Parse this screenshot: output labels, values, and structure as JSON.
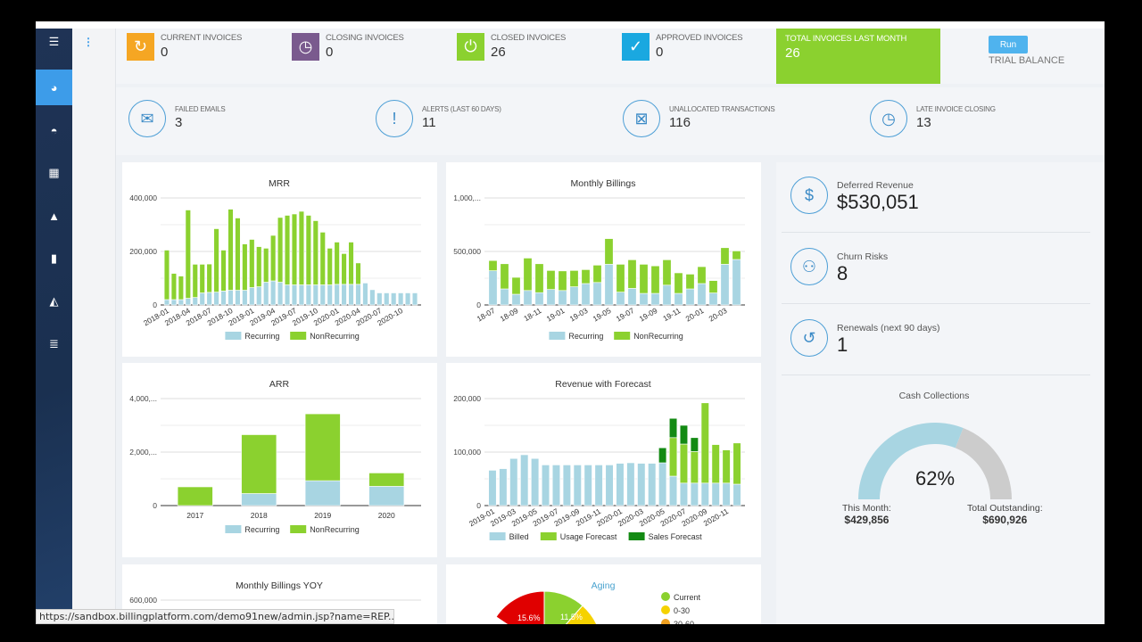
{
  "sidebar": {
    "items": [
      {
        "icon": "menu-icon",
        "glyph": "☰"
      },
      {
        "icon": "pie-chart-icon",
        "glyph": "◕",
        "active": true
      },
      {
        "icon": "dashboard-gauge-icon",
        "glyph": "◓"
      },
      {
        "icon": "grid-icon",
        "glyph": "▦"
      },
      {
        "icon": "user-icon",
        "glyph": "▲"
      },
      {
        "icon": "document-icon",
        "glyph": "▮"
      },
      {
        "icon": "area-chart-icon",
        "glyph": "◭"
      },
      {
        "icon": "list-icon",
        "glyph": "≣"
      }
    ]
  },
  "invoice_stats": [
    {
      "label": "CURRENT INVOICES",
      "value": "0",
      "color": "#f5a623",
      "icon": "refresh-icon",
      "glyph": "↻"
    },
    {
      "label": "CLOSING INVOICES",
      "value": "0",
      "color": "#7a5a8e",
      "icon": "clock-icon",
      "glyph": "◷"
    },
    {
      "label": "CLOSED INVOICES",
      "value": "26",
      "color": "#8bd12f",
      "icon": "power-icon",
      "glyph": "⏻"
    },
    {
      "label": "APPROVED INVOICES",
      "value": "0",
      "color": "#1aa8e0",
      "icon": "check-icon",
      "glyph": "✓"
    }
  ],
  "total_last_month": {
    "label": "TOTAL INVOICES LAST MONTH",
    "value": "26"
  },
  "trial_balance": {
    "button": "Run",
    "label": "TRIAL BALANCE"
  },
  "alerts": [
    {
      "label": "FAILED EMAILS",
      "value": "3",
      "icon": "email-alert-icon",
      "glyph": "✉"
    },
    {
      "label": "ALERTS (LAST 60 DAYS)",
      "value": "11",
      "icon": "exclamation-icon",
      "glyph": "!"
    },
    {
      "label": "UNALLOCATED TRANSACTIONS",
      "value": "116",
      "icon": "transaction-x-icon",
      "glyph": "⊠"
    },
    {
      "label": "LATE INVOICE CLOSING",
      "value": "13",
      "icon": "clock-icon",
      "glyph": "◷"
    }
  ],
  "kpis": [
    {
      "label": "Deferred Revenue",
      "value": "$530,051",
      "icon": "money-bill-icon",
      "glyph": "$"
    },
    {
      "label": "Churn Risks",
      "value": "8",
      "icon": "users-icon",
      "glyph": "⚇"
    },
    {
      "label": "Renewals (next 90 days)",
      "value": "1",
      "icon": "renew-icon",
      "glyph": "↺"
    }
  ],
  "cash_collections": {
    "title": "Cash Collections",
    "percent": 62,
    "percent_label": "62%",
    "this_month_label": "This Month:",
    "this_month": "$429,856",
    "outstanding_label": "Total Outstanding:",
    "outstanding": "$690,926",
    "colors": {
      "collected": "#a8d5e2",
      "remaining": "#cccccc"
    }
  },
  "status_url": "https://sandbox.billingplatform.com/demo91new/admin.jsp?name=REP...",
  "chart_data": [
    {
      "id": "mrr",
      "type": "bar",
      "stacked": true,
      "title": "MRR",
      "ylim": [
        0,
        400000
      ],
      "yticks": [
        "400,000",
        "200,000",
        "0"
      ],
      "ytick_values": [
        400000,
        200000,
        0
      ],
      "categories": [
        "2018-01",
        "2018-02",
        "2018-03",
        "2018-04",
        "2018-05",
        "2018-06",
        "2018-07",
        "2018-08",
        "2018-09",
        "2018-10",
        "2018-11",
        "2018-12",
        "2019-01",
        "2019-02",
        "2019-03",
        "2019-04",
        "2019-05",
        "2019-06",
        "2019-07",
        "2019-08",
        "2019-09",
        "2019-10",
        "2019-11",
        "2019-12",
        "2020-01",
        "2020-02",
        "2020-03",
        "2020-04",
        "2020-05",
        "2020-06",
        "2020-07",
        "2020-08",
        "2020-09",
        "2020-10",
        "2020-11",
        "2020-12"
      ],
      "xtick_labels": [
        "2018-01",
        "2018-04",
        "2018-07",
        "2018-10",
        "2019-01",
        "2019-04",
        "2019-07",
        "2019-10",
        "2020-01",
        "2020-04",
        "2020-07",
        "2020-10"
      ],
      "xtick_every": 3,
      "series": [
        {
          "name": "Recurring",
          "color": "#a8d5e2",
          "values": [
            20000,
            20000,
            20000,
            25000,
            28000,
            45000,
            47000,
            48000,
            52000,
            55000,
            55000,
            55000,
            65000,
            68000,
            85000,
            90000,
            85000,
            75000,
            75000,
            75000,
            75000,
            75000,
            75000,
            75000,
            77000,
            77000,
            77000,
            77000,
            82000,
            57000,
            45000,
            45000,
            45000,
            45000,
            45000,
            45000
          ]
        },
        {
          "name": "NonRecurring",
          "color": "#8bd12f",
          "values": [
            185000,
            98000,
            88000,
            330000,
            124000,
            107000,
            106000,
            237000,
            153000,
            303000,
            270000,
            173000,
            180000,
            150000,
            127000,
            170000,
            242000,
            260000,
            265000,
            275000,
            260000,
            240000,
            197000,
            137000,
            158000,
            115000,
            158000,
            80000,
            0,
            0,
            0,
            0,
            0,
            0,
            0,
            0
          ]
        }
      ]
    },
    {
      "id": "billings",
      "type": "bar",
      "stacked": true,
      "title": "Monthly Billings",
      "ylim": [
        0,
        1000000
      ],
      "yticks": [
        "1,000,...",
        "500,000",
        "0"
      ],
      "ytick_values": [
        1000000,
        500000,
        0
      ],
      "categories": [
        "18-07",
        "18-08",
        "18-09",
        "18-10",
        "18-11",
        "18-12",
        "19-01",
        "19-02",
        "19-03",
        "19-04",
        "19-05",
        "19-06",
        "19-07",
        "19-08",
        "19-09",
        "19-10",
        "19-11",
        "19-12",
        "20-01",
        "20-02",
        "20-03",
        "20-04"
      ],
      "xtick_labels": [
        "18-07",
        "18-09",
        "18-11",
        "19-01",
        "19-03",
        "19-05",
        "19-07",
        "19-09",
        "19-11",
        "20-01",
        "20-03"
      ],
      "xtick_every": 2,
      "series": [
        {
          "name": "Recurring",
          "color": "#a8d5e2",
          "values": [
            320000,
            150000,
            100000,
            135000,
            115000,
            145000,
            135000,
            170000,
            200000,
            210000,
            380000,
            120000,
            155000,
            108000,
            108000,
            185000,
            108000,
            150000,
            200000,
            112000,
            380000,
            425000
          ]
        },
        {
          "name": "NonRecurring",
          "color": "#8bd12f",
          "values": [
            95000,
            235000,
            158000,
            303000,
            270000,
            177000,
            183000,
            152000,
            130000,
            162000,
            240000,
            260000,
            267000,
            272000,
            257000,
            237000,
            192000,
            138000,
            158000,
            116000,
            155000,
            80000
          ]
        }
      ]
    },
    {
      "id": "arr",
      "type": "bar",
      "stacked": true,
      "title": "ARR",
      "ylim": [
        0,
        4000000
      ],
      "yticks": [
        "4,000,...",
        "2,000,...",
        "0"
      ],
      "ytick_values": [
        4000000,
        2000000,
        0
      ],
      "categories": [
        "2017",
        "2018",
        "2019",
        "2020"
      ],
      "xtick_labels": [
        "2017",
        "2018",
        "2019",
        "2020"
      ],
      "xtick_every": 1,
      "series": [
        {
          "name": "Recurring",
          "color": "#a8d5e2",
          "values": [
            0,
            450000,
            930000,
            720000
          ]
        },
        {
          "name": "NonRecurring",
          "color": "#8bd12f",
          "values": [
            700000,
            2200000,
            2500000,
            500000
          ]
        }
      ]
    },
    {
      "id": "forecast",
      "type": "bar",
      "stacked": true,
      "title": "Revenue with Forecast",
      "ylim": [
        0,
        200000
      ],
      "yticks": [
        "200,000",
        "100,000",
        "0"
      ],
      "ytick_values": [
        200000,
        100000,
        0
      ],
      "categories": [
        "2019-01",
        "2019-02",
        "2019-03",
        "2019-04",
        "2019-05",
        "2019-06",
        "2019-07",
        "2019-08",
        "2019-09",
        "2019-10",
        "2019-11",
        "2019-12",
        "2020-01",
        "2020-02",
        "2020-03",
        "2020-04",
        "2020-05",
        "2020-06",
        "2020-07",
        "2020-08",
        "2020-09",
        "2020-10",
        "2020-11",
        "2020-12"
      ],
      "xtick_labels": [
        "2019-01",
        "2019-03",
        "2019-05",
        "2019-07",
        "2019-09",
        "2019-11",
        "2020-01",
        "2020-03",
        "2020-05",
        "2020-07",
        "2020-09",
        "2020-11"
      ],
      "xtick_every": 2,
      "series": [
        {
          "name": "Billed",
          "color": "#a8d5e2",
          "values": [
            66000,
            69000,
            88000,
            95000,
            88000,
            76000,
            76000,
            76000,
            76000,
            76000,
            76000,
            76000,
            79000,
            80000,
            79000,
            79000,
            80000,
            55000,
            42000,
            42000,
            42000,
            42000,
            42000,
            40000
          ]
        },
        {
          "name": "Usage Forecast",
          "color": "#8bd12f",
          "values": [
            0,
            0,
            0,
            0,
            0,
            0,
            0,
            0,
            0,
            0,
            0,
            0,
            0,
            0,
            0,
            0,
            0,
            72000,
            73000,
            59000,
            150000,
            72000,
            62000,
            77000
          ]
        },
        {
          "name": "Sales Forecast",
          "color": "#138a13",
          "values": [
            0,
            0,
            0,
            0,
            0,
            0,
            0,
            0,
            0,
            0,
            0,
            0,
            0,
            0,
            0,
            0,
            28000,
            36000,
            35000,
            26000,
            0,
            0,
            0,
            0
          ]
        }
      ]
    },
    {
      "id": "yoy",
      "type": "bar",
      "title": "Monthly Billings YOY",
      "yticks": [
        "600,000"
      ],
      "ytick_values": [
        600000
      ]
    },
    {
      "id": "aging",
      "type": "pie",
      "title": "Aging",
      "slices": [
        {
          "name": "Current",
          "value": 11.5,
          "label": "11.5%",
          "color": "#8bd12f"
        },
        {
          "name": "0-30",
          "color": "#f5d200"
        },
        {
          "name": "30-60",
          "color": "#f0a020"
        },
        {
          "name": "",
          "value": 15.6,
          "label": "15.6%",
          "color": "#e00000"
        }
      ]
    }
  ]
}
